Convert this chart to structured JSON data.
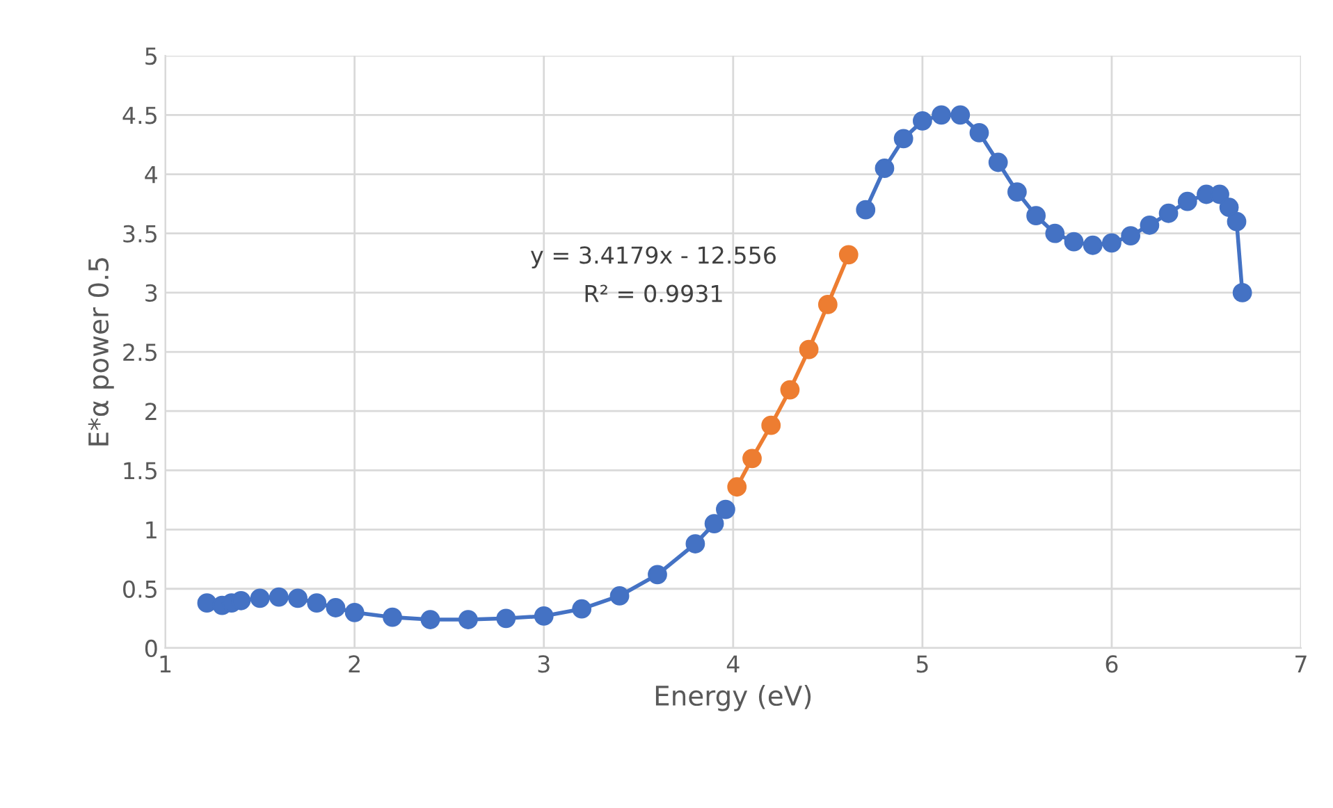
{
  "chart_data": {
    "type": "line",
    "xlabel": "Energy (eV)",
    "ylabel": "E*α power 0.5",
    "xlim": [
      1,
      7
    ],
    "xticks": [
      1,
      2,
      3,
      4,
      5,
      6,
      7
    ],
    "ylim": [
      0,
      5
    ],
    "yticks": [
      0,
      0.5,
      1,
      1.5,
      2,
      2.5,
      3,
      3.5,
      4,
      4.5,
      5
    ],
    "grid": true,
    "marker": "circle",
    "legend": false,
    "annotations": [
      "y = 3.4179x - 12.556",
      "R² = 0.9931"
    ],
    "series": [
      {
        "color": "#4472c4",
        "x": [
          1.22,
          1.3,
          1.35,
          1.4,
          1.5,
          1.6,
          1.7,
          1.8,
          1.9,
          2.0,
          2.2,
          2.4,
          2.6,
          2.8,
          3.0,
          3.2,
          3.4,
          3.6,
          3.8,
          3.9,
          3.96,
          4.3,
          4.7,
          4.8,
          4.9,
          5.0,
          5.1,
          5.2,
          5.3,
          5.4,
          5.5,
          5.6,
          5.7,
          5.8,
          5.9,
          6.0,
          6.1,
          6.2,
          6.3,
          6.4,
          6.5,
          6.57,
          6.62,
          6.66,
          6.69
        ],
        "values": [
          0.38,
          0.36,
          0.38,
          0.4,
          0.42,
          0.43,
          0.42,
          0.38,
          0.34,
          0.3,
          0.26,
          0.24,
          0.24,
          0.25,
          0.27,
          0.33,
          0.44,
          0.62,
          0.88,
          1.05,
          1.17,
          null,
          3.7,
          4.05,
          4.3,
          4.45,
          4.5,
          4.5,
          4.35,
          4.1,
          3.85,
          3.65,
          3.5,
          3.43,
          3.4,
          3.42,
          3.48,
          3.57,
          3.67,
          3.77,
          3.83,
          3.83,
          3.72,
          3.6,
          3.0
        ]
      },
      {
        "color": "#ed7d31",
        "x": [
          4.02,
          4.1,
          4.2,
          4.3,
          4.4,
          4.5,
          4.61
        ],
        "values": [
          1.36,
          1.6,
          1.88,
          2.18,
          2.52,
          2.9,
          3.32
        ]
      }
    ]
  }
}
